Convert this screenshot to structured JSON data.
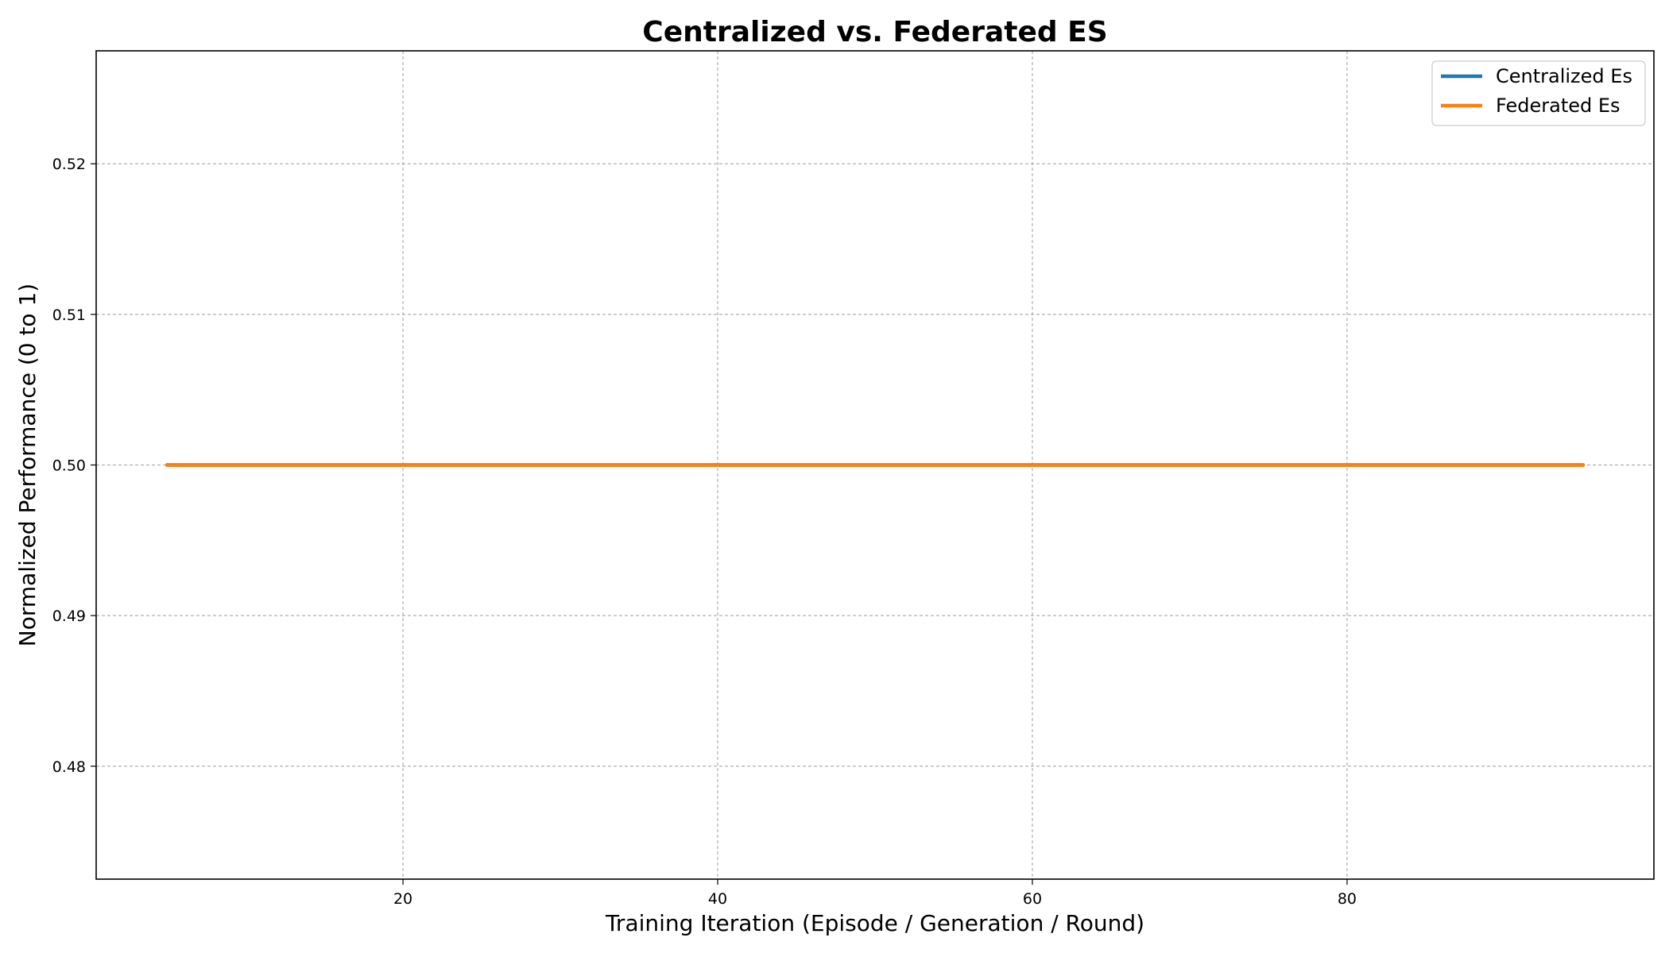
{
  "chart_data": {
    "type": "line",
    "title": "Centralized vs. Federated ES",
    "xlabel": "Training Iteration (Episode / Generation / Round)",
    "ylabel": "Normalized Performance (0 to 1)",
    "xlim": [
      0.5,
      99.5
    ],
    "ylim": [
      0.4725,
      0.5275
    ],
    "xticks": [
      20,
      40,
      60,
      80
    ],
    "xtick_labels": [
      "20",
      "40",
      "60",
      "80"
    ],
    "yticks": [
      0.48,
      0.49,
      0.5,
      0.51,
      0.52
    ],
    "ytick_labels": [
      "0.48",
      "0.49",
      "0.50",
      "0.51",
      "0.52"
    ],
    "grid": true,
    "legend_position": "top-right",
    "series": [
      {
        "name": "Centralized Es",
        "color": "#1f77b4",
        "x": [
          5,
          95
        ],
        "y": [
          0.5,
          0.5
        ]
      },
      {
        "name": "Federated Es",
        "color": "#ff7f0e",
        "x": [
          5,
          95
        ],
        "y": [
          0.5,
          0.5
        ]
      }
    ]
  }
}
